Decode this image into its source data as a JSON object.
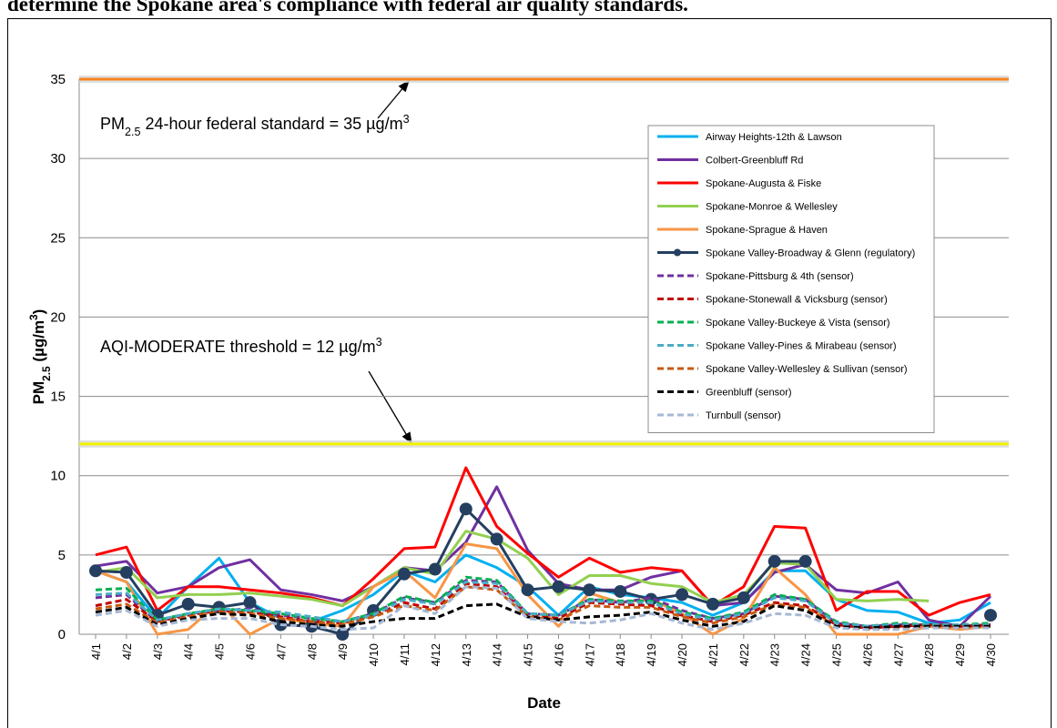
{
  "caption": "determine the Spokane area's compliance with federal air quality standards.",
  "chart_data": {
    "type": "line",
    "x_label": "Date",
    "y_label": [
      {
        "text": "PM"
      },
      {
        "text": "2.5",
        "baseline": "sub"
      },
      {
        "text": " (µg/m"
      },
      {
        "text": "3",
        "baseline": "super"
      },
      {
        "text": ")"
      }
    ],
    "ylim": [
      0,
      35
    ],
    "yticks": [
      0,
      5,
      10,
      15,
      20,
      25,
      30,
      35
    ],
    "grid": true,
    "legend": "upper right",
    "reference_lines": [
      {
        "value": 35,
        "color": "#f58220",
        "label": [
          {
            "text": "PM"
          },
          {
            "text": "2.5",
            "baseline": "sub"
          },
          {
            "text": " 24-hour federal standard = 35 µg/m"
          },
          {
            "text": "3",
            "baseline": "super"
          }
        ]
      },
      {
        "value": 12,
        "color": "#f2f200",
        "label": [
          {
            "text": "AQI-MODERATE threshold = 12 µg/m"
          },
          {
            "text": "3",
            "baseline": "super"
          }
        ]
      }
    ],
    "categories": [
      "4/1",
      "4/2",
      "4/3",
      "4/4",
      "4/5",
      "4/6",
      "4/7",
      "4/8",
      "4/9",
      "4/10",
      "4/11",
      "4/12",
      "4/13",
      "4/14",
      "4/15",
      "4/16",
      "4/17",
      "4/18",
      "4/19",
      "4/20",
      "4/21",
      "4/22",
      "4/23",
      "4/24",
      "4/25",
      "4/26",
      "4/27",
      "4/28",
      "4/29",
      "4/30"
    ],
    "series": [
      {
        "name": "Airway Heights-12th & Lawson",
        "color": "#00b0f0",
        "dashed": false,
        "values": [
          4.0,
          3.3,
          1.0,
          3.0,
          4.8,
          2.0,
          1.0,
          0.8,
          1.5,
          2.5,
          4.0,
          3.3,
          5.0,
          4.2,
          3.0,
          1.2,
          3.0,
          2.5,
          2.3,
          2.0,
          1.2,
          2.0,
          4.0,
          4.0,
          2.2,
          1.5,
          1.4,
          0.7,
          0.9,
          2.0
        ]
      },
      {
        "name": "Colbert-Greenbluff Rd",
        "color": "#7030a0",
        "dashed": false,
        "values": [
          4.3,
          4.6,
          2.6,
          3.0,
          4.2,
          4.7,
          2.8,
          2.5,
          2.1,
          3.0,
          4.2,
          4.0,
          5.8,
          9.3,
          5.3,
          3.2,
          2.8,
          2.8,
          3.6,
          4.0,
          1.8,
          2.0,
          3.9,
          4.4,
          2.8,
          2.6,
          3.3,
          0.9,
          0.5,
          2.4
        ]
      },
      {
        "name": "Spokane-Augusta & Fiske",
        "color": "#ff0000",
        "dashed": false,
        "values": [
          5.0,
          5.5,
          1.5,
          3.0,
          3.0,
          2.8,
          2.6,
          2.3,
          1.8,
          3.5,
          5.4,
          5.5,
          10.5,
          6.8,
          5.1,
          3.6,
          4.8,
          3.9,
          4.2,
          4.0,
          1.8,
          3.0,
          6.8,
          6.7,
          1.5,
          2.7,
          2.7,
          1.2,
          2.0,
          2.5
        ]
      },
      {
        "name": "Spokane-Monroe & Wellesley",
        "color": "#92d050",
        "dashed": false,
        "values": [
          3.9,
          4.2,
          2.3,
          2.5,
          2.5,
          2.6,
          2.4,
          2.2,
          1.8,
          3.0,
          4.2,
          3.8,
          6.5,
          6.0,
          4.8,
          2.5,
          3.7,
          3.7,
          3.2,
          3.0,
          2.0,
          2.5,
          4.5,
          4.4,
          2.2,
          2.1,
          2.2,
          2.1,
          null,
          null
        ]
      },
      {
        "name": "Spokane-Sprague & Haven",
        "color": "#f79646",
        "dashed": false,
        "values": [
          4.0,
          3.3,
          0.0,
          0.3,
          2.0,
          0.0,
          1.0,
          0.7,
          0.5,
          3.0,
          4.0,
          2.3,
          5.7,
          5.4,
          2.5,
          0.5,
          2.6,
          2.0,
          2.2,
          1.3,
          0.0,
          1.0,
          4.2,
          2.5,
          0.0,
          0.0,
          0.0,
          0.5,
          0.3,
          0.5
        ]
      },
      {
        "name": "Spokane Valley-Broadway & Glenn (regulatory)",
        "color": "#243f60",
        "dashed": false,
        "markers": true,
        "values": [
          4.0,
          3.9,
          1.2,
          1.9,
          1.7,
          2.0,
          0.6,
          0.5,
          0.0,
          1.5,
          3.8,
          4.1,
          7.9,
          6.0,
          2.8,
          3.0,
          2.8,
          2.7,
          2.2,
          2.5,
          1.9,
          2.3,
          4.6,
          4.6,
          null,
          null,
          null,
          null,
          null,
          1.2
        ]
      },
      {
        "name": "Spokane-Pittsburg & 4th (sensor)",
        "color": "#7030a0",
        "dashed": true,
        "values": [
          2.3,
          2.5,
          0.8,
          1.3,
          1.5,
          1.6,
          1.2,
          1.0,
          0.8,
          1.3,
          2.3,
          2.0,
          3.4,
          3.3,
          1.3,
          1.2,
          2.2,
          2.0,
          2.3,
          1.5,
          1.0,
          1.3,
          2.4,
          2.2,
          0.7,
          0.5,
          0.6,
          0.6,
          0.5,
          0.6
        ]
      },
      {
        "name": "Spokane-Stonewall & Vicksburg (sensor)",
        "color": "#c00000",
        "dashed": true,
        "values": [
          1.8,
          2.2,
          0.8,
          1.2,
          1.5,
          1.4,
          1.1,
          0.8,
          0.7,
          1.2,
          2.0,
          1.6,
          3.2,
          3.0,
          1.2,
          1.0,
          2.0,
          1.9,
          1.8,
          1.2,
          0.8,
          1.2,
          2.0,
          1.8,
          0.6,
          0.4,
          0.5,
          0.6,
          0.5,
          0.6
        ]
      },
      {
        "name": "Spokane Valley-Buckeye & Vista (sensor)",
        "color": "#00b050",
        "dashed": true,
        "values": [
          2.8,
          2.9,
          0.9,
          1.3,
          1.6,
          1.5,
          1.3,
          1.0,
          0.8,
          1.3,
          2.4,
          2.0,
          3.6,
          3.4,
          1.3,
          1.2,
          2.2,
          2.1,
          2.1,
          1.4,
          1.0,
          1.4,
          2.5,
          2.2,
          0.8,
          0.5,
          0.7,
          0.6,
          0.6,
          0.7
        ]
      },
      {
        "name": "Spokane Valley-Pines & Mirabeau (sensor)",
        "color": "#4bacc6",
        "dashed": true,
        "values": [
          2.5,
          2.6,
          0.9,
          1.3,
          1.6,
          1.5,
          1.4,
          1.1,
          0.8,
          1.2,
          2.2,
          1.9,
          3.3,
          3.2,
          1.3,
          1.2,
          2.1,
          2.0,
          2.0,
          1.3,
          0.9,
          1.3,
          2.3,
          2.1,
          0.7,
          0.5,
          0.6,
          0.6,
          0.6,
          0.6
        ]
      },
      {
        "name": "Spokane Valley-Wellesley & Sullivan (sensor)",
        "color": "#c65911",
        "dashed": true,
        "values": [
          1.6,
          1.9,
          0.7,
          1.1,
          1.4,
          1.3,
          1.0,
          0.8,
          0.6,
          1.1,
          1.8,
          1.5,
          3.0,
          2.8,
          1.1,
          0.9,
          1.8,
          1.7,
          1.7,
          1.1,
          0.7,
          1.1,
          1.9,
          1.7,
          0.5,
          0.3,
          0.4,
          0.5,
          0.4,
          0.5
        ]
      },
      {
        "name": "Greenbluff (sensor)",
        "color": "#000000",
        "dashed": true,
        "values": [
          1.4,
          1.7,
          0.6,
          1.0,
          1.3,
          1.2,
          0.8,
          0.6,
          0.5,
          0.8,
          1.0,
          1.0,
          1.8,
          1.9,
          1.1,
          0.9,
          1.1,
          1.2,
          1.4,
          0.9,
          0.5,
          0.8,
          1.8,
          1.5,
          0.5,
          0.4,
          0.5,
          0.5,
          0.5,
          0.5
        ]
      },
      {
        "name": "Turnbull (sensor)",
        "color": "#a6b8d4",
        "dashed": true,
        "values": [
          1.2,
          1.5,
          0.5,
          0.9,
          1.0,
          1.0,
          0.6,
          0.5,
          0.3,
          0.4,
          1.8,
          1.3,
          3.0,
          2.9,
          1.0,
          0.8,
          0.7,
          0.9,
          1.3,
          0.7,
          0.3,
          0.7,
          1.3,
          1.2,
          0.4,
          0.3,
          0.3,
          0.4,
          0.4,
          0.4
        ]
      }
    ]
  }
}
